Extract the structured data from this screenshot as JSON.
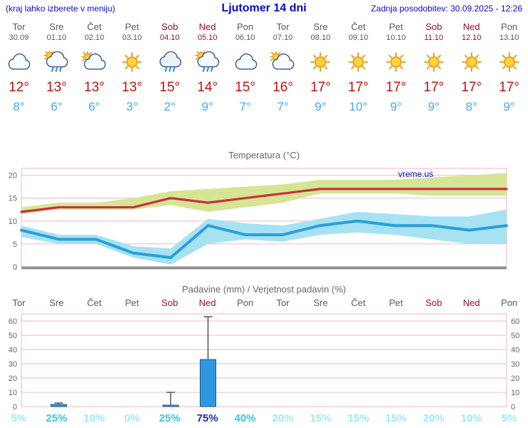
{
  "header": {
    "menu_hint": "(kraj lahko izberete v meniju)",
    "title": "Ljutomer 14 dni",
    "last_update": "Zadnja posodobitev: 30.09.2025 - 12:26"
  },
  "forecast": {
    "days": [
      {
        "name": "Tor",
        "date": "30.09",
        "icon": "cloud",
        "tmax": "12°",
        "tmin": "8°",
        "weekend": false
      },
      {
        "name": "Sre",
        "date": "01.10",
        "icon": "sun-rain",
        "tmax": "13°",
        "tmin": "6°",
        "weekend": false
      },
      {
        "name": "Čet",
        "date": "02.10",
        "icon": "partly-cloudy",
        "tmax": "13°",
        "tmin": "6°",
        "weekend": false
      },
      {
        "name": "Pet",
        "date": "03.10",
        "icon": "sun",
        "tmax": "13°",
        "tmin": "3°",
        "weekend": false
      },
      {
        "name": "Sob",
        "date": "04.10",
        "icon": "rain",
        "tmax": "15°",
        "tmin": "2°",
        "weekend": true
      },
      {
        "name": "Ned",
        "date": "05.10",
        "icon": "sun-rain",
        "tmax": "14°",
        "tmin": "9°",
        "weekend": true
      },
      {
        "name": "Pon",
        "date": "06.10",
        "icon": "cloud",
        "tmax": "15°",
        "tmin": "7°",
        "weekend": false
      },
      {
        "name": "Tor",
        "date": "07.10",
        "icon": "partly-cloudy",
        "tmax": "16°",
        "tmin": "7°",
        "weekend": false
      },
      {
        "name": "Sre",
        "date": "08.10",
        "icon": "sun",
        "tmax": "17°",
        "tmin": "9°",
        "weekend": false
      },
      {
        "name": "Čet",
        "date": "09.10",
        "icon": "sun",
        "tmax": "17°",
        "tmin": "10°",
        "weekend": false
      },
      {
        "name": "Pet",
        "date": "10.10",
        "icon": "sun",
        "tmax": "17°",
        "tmin": "9°",
        "weekend": false
      },
      {
        "name": "Sob",
        "date": "11.10",
        "icon": "sun",
        "tmax": "17°",
        "tmin": "9°",
        "weekend": true
      },
      {
        "name": "Ned",
        "date": "12.10",
        "icon": "sun",
        "tmax": "17°",
        "tmin": "8°",
        "weekend": true
      },
      {
        "name": "Pon",
        "date": "13.10",
        "icon": "sun",
        "tmax": "17°",
        "tmin": "9°",
        "weekend": false
      }
    ]
  },
  "chart_data": [
    {
      "type": "line",
      "title": "Temperatura (°C)",
      "watermark": "vreme.us",
      "ylim": [
        0,
        21.5
      ],
      "yticks": [
        0,
        5,
        10,
        15,
        20
      ],
      "grid": true,
      "legend": "none",
      "series": [
        {
          "name": "max-temperature",
          "color": "#c83040",
          "values": [
            12,
            13,
            13,
            13,
            15,
            14,
            15,
            16,
            17,
            17,
            17,
            17,
            17,
            17
          ]
        },
        {
          "name": "min-temperature",
          "color": "#2b9fd8",
          "values": [
            8,
            6,
            6,
            3,
            2,
            9,
            7,
            7,
            9,
            10,
            9,
            9,
            8,
            9
          ]
        }
      ],
      "bands": [
        {
          "name": "max-temperature-range",
          "color": "#d6e593",
          "upper": [
            13,
            14,
            14,
            15,
            16.5,
            17,
            17.5,
            18,
            19,
            19,
            19,
            19.5,
            20,
            20.5
          ],
          "lower": [
            11.5,
            12.5,
            12.5,
            12.5,
            13.5,
            12,
            13,
            14,
            16,
            16,
            16,
            15.5,
            15.5,
            15.5
          ]
        },
        {
          "name": "min-temperature-range",
          "color": "#a6e2f2",
          "upper": [
            9,
            7,
            7,
            4.5,
            4,
            10.5,
            9.5,
            9,
            10.5,
            12,
            11.5,
            11,
            11,
            12.5
          ],
          "lower": [
            6.5,
            5,
            5,
            2,
            0.5,
            5,
            6,
            5.5,
            7,
            7.5,
            7,
            6,
            5,
            5
          ]
        }
      ],
      "zero_line_color": "#909090",
      "grid_color": "#f0b6c4"
    },
    {
      "type": "bar",
      "title": "Padavine (mm) / Verjetnost padavin (%)",
      "day_labels": [
        "Tor",
        "Sre",
        "Čet",
        "Pet",
        "Sob",
        "Ned",
        "Pon",
        "Tor",
        "Sre",
        "Čet",
        "Pet",
        "Sob",
        "Ned",
        "Pon"
      ],
      "weekend_flags": [
        false,
        false,
        false,
        false,
        true,
        true,
        false,
        false,
        false,
        false,
        false,
        true,
        true,
        false
      ],
      "ylim": [
        0,
        65
      ],
      "yticks": [
        0,
        10,
        20,
        30,
        40,
        50,
        60
      ],
      "precip_mm": [
        0,
        1.5,
        0,
        0,
        1,
        33,
        0,
        0,
        0,
        0,
        0,
        0,
        0,
        0
      ],
      "precip_max_mm": [
        0,
        2.5,
        0,
        0,
        10,
        63,
        0,
        0,
        0,
        0,
        0,
        0,
        0,
        0
      ],
      "probability_labels": [
        "5%",
        "25%",
        "10%",
        "0%",
        "25%",
        "75%",
        "40%",
        "20%",
        "15%",
        "15%",
        "15%",
        "20%",
        "10%",
        "5%"
      ],
      "bar_fill": "#2f97e0",
      "bar_stroke": "#19588a",
      "whisker_color": "#555555",
      "grid_color": "#f0b6c4"
    }
  ],
  "colors": {
    "header_blue": "#0a0acc",
    "weekend_red": "#9b1030",
    "day_gray": "#5a5a5a",
    "tmax_red": "#cc0f0f",
    "tmin_blue": "#44a8f5",
    "chart_title_gray": "#666666",
    "prob_low": "#9fe9f2",
    "prob_mid": "#3fc3de",
    "prob_high": "#1f2f9e"
  }
}
